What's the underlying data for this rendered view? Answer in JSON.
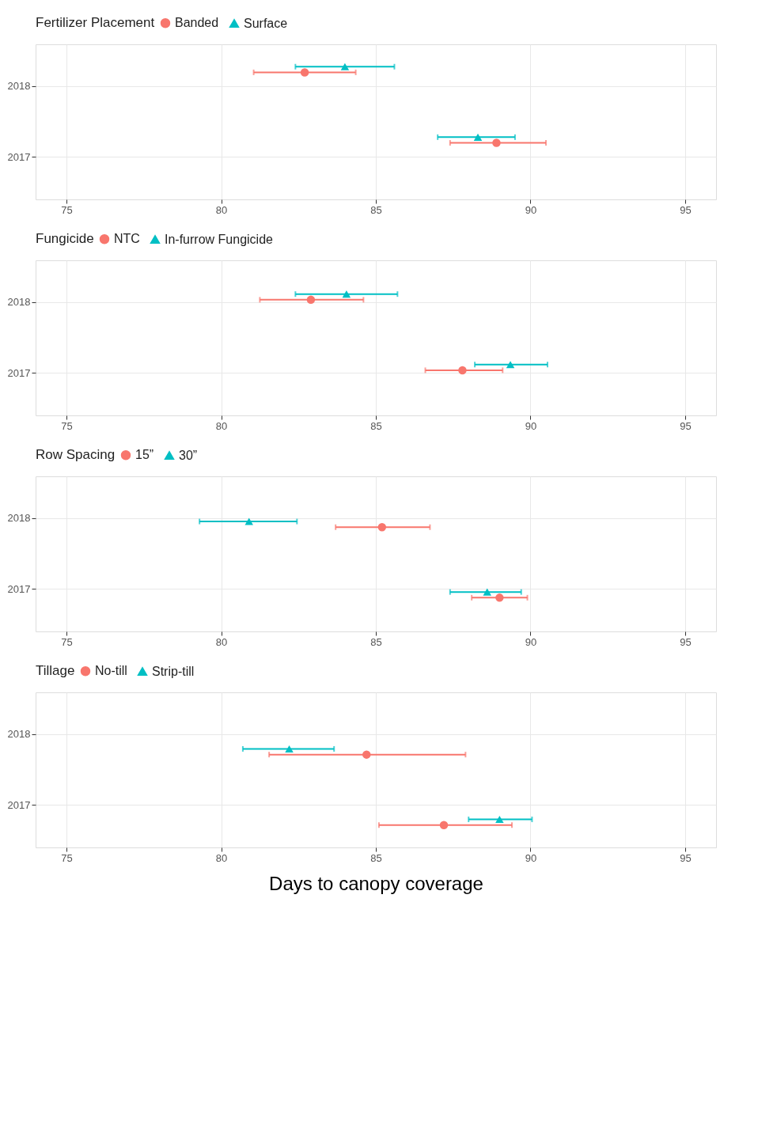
{
  "chart_data": [
    {
      "type": "scatter",
      "orientation": "horizontal",
      "legend_title": "Fertilizer Placement",
      "legend": "top",
      "grid": true,
      "categories": [
        "2018",
        "2017"
      ],
      "xlim": [
        74,
        96
      ],
      "xticks": [
        75,
        80,
        85,
        90,
        95
      ],
      "series": [
        {
          "name": "Banded",
          "color": "#f8766d",
          "marker": "circle",
          "values": [
            82.7,
            88.9
          ],
          "errors": [
            [
              81.05,
              84.35
            ],
            [
              87.4,
              90.5
            ]
          ]
        },
        {
          "name": "Surface",
          "color": "#00bfc4",
          "marker": "triangle",
          "values": [
            84.0,
            88.3
          ],
          "errors": [
            [
              82.4,
              85.6
            ],
            [
              87.0,
              89.5
            ]
          ]
        }
      ]
    },
    {
      "type": "scatter",
      "orientation": "horizontal",
      "legend_title": "Fungicide",
      "legend": "top",
      "grid": true,
      "categories": [
        "2018",
        "2017"
      ],
      "xlim": [
        74,
        96
      ],
      "xticks": [
        75,
        80,
        85,
        90,
        95
      ],
      "series": [
        {
          "name": "NTC",
          "color": "#f8766d",
          "marker": "circle",
          "values": [
            82.9,
            87.8
          ],
          "errors": [
            [
              81.25,
              84.6
            ],
            [
              86.6,
              89.1
            ]
          ]
        },
        {
          "name": "In-furrow Fungicide",
          "color": "#00bfc4",
          "marker": "triangle",
          "values": [
            84.05,
            89.35
          ],
          "errors": [
            [
              82.4,
              85.7
            ],
            [
              88.2,
              90.55
            ]
          ]
        }
      ]
    },
    {
      "type": "scatter",
      "orientation": "horizontal",
      "legend_title": "Row Spacing",
      "legend": "top",
      "grid": true,
      "categories": [
        "2018",
        "2017"
      ],
      "xlim": [
        74,
        96
      ],
      "xticks": [
        75,
        80,
        85,
        90,
        95
      ],
      "series": [
        {
          "name": "15”",
          "color": "#f8766d",
          "marker": "circle",
          "values": [
            85.2,
            89.0
          ],
          "errors": [
            [
              83.7,
              86.75
            ],
            [
              88.1,
              89.9
            ]
          ]
        },
        {
          "name": "30”",
          "color": "#00bfc4",
          "marker": "triangle",
          "values": [
            80.9,
            88.6
          ],
          "errors": [
            [
              79.3,
              82.45
            ],
            [
              87.4,
              89.7
            ]
          ]
        }
      ]
    },
    {
      "type": "scatter",
      "orientation": "horizontal",
      "legend_title": "Tillage",
      "legend": "top",
      "grid": true,
      "categories": [
        "2018",
        "2017"
      ],
      "xlim": [
        74,
        96
      ],
      "xticks": [
        75,
        80,
        85,
        90,
        95
      ],
      "xlabel": "Days to canopy coverage",
      "series": [
        {
          "name": "No-till",
          "color": "#f8766d",
          "marker": "circle",
          "values": [
            84.7,
            87.2
          ],
          "errors": [
            [
              81.55,
              87.9
            ],
            [
              85.1,
              89.4
            ]
          ]
        },
        {
          "name": "Strip-till",
          "color": "#00bfc4",
          "marker": "triangle",
          "values": [
            82.2,
            89.0
          ],
          "errors": [
            [
              80.7,
              83.65
            ],
            [
              88.0,
              90.05
            ]
          ]
        }
      ]
    }
  ]
}
